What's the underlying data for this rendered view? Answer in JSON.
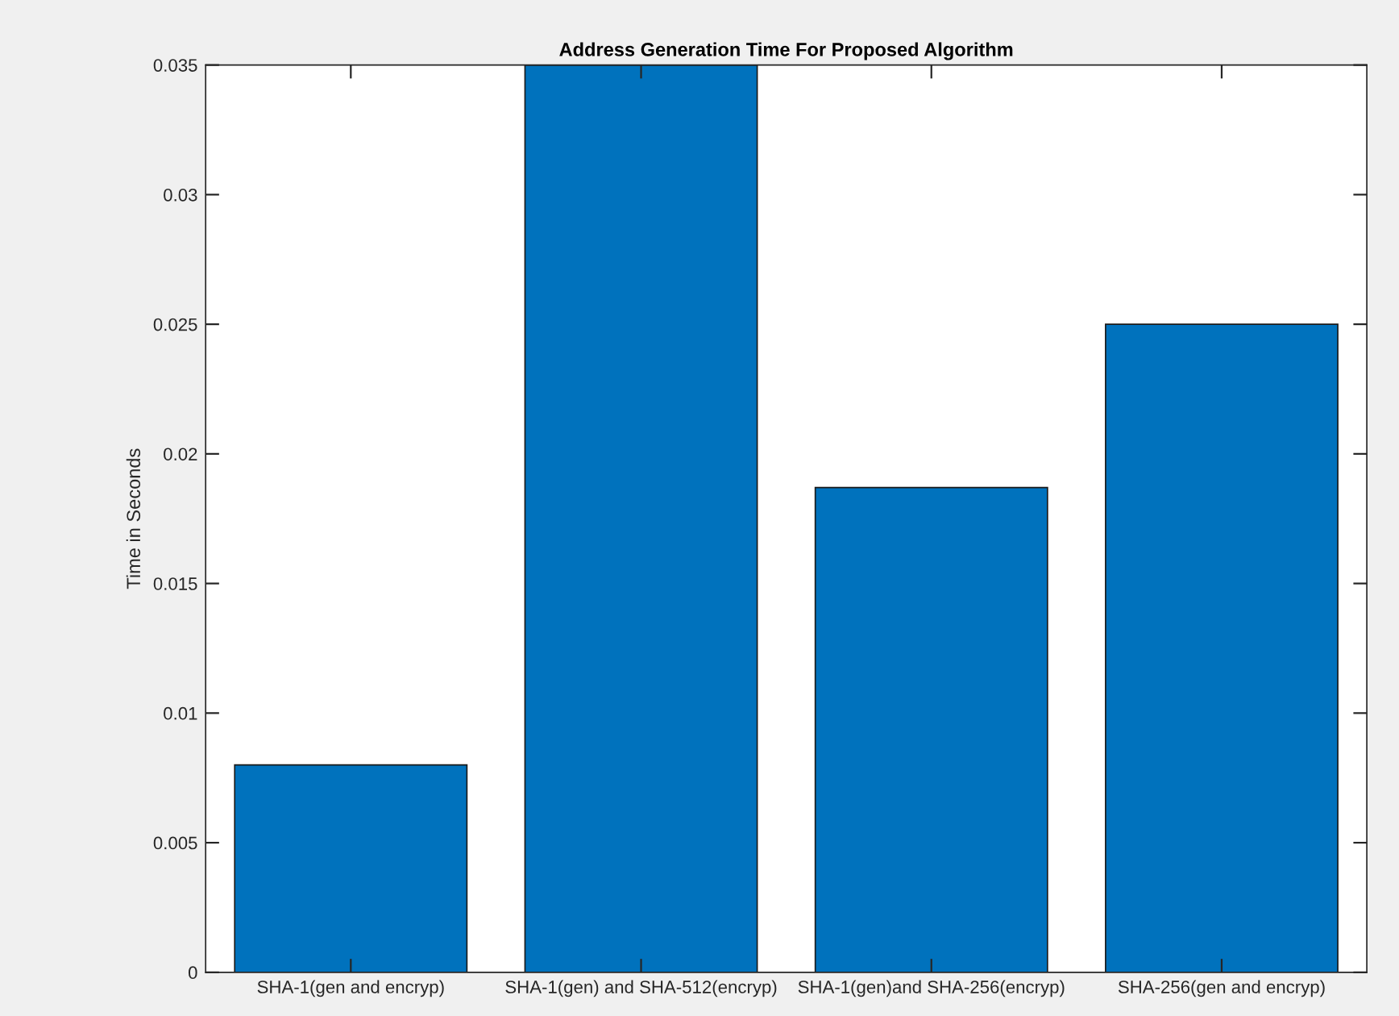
{
  "chart_data": {
    "type": "bar",
    "title": "Address Generation Time For Proposed Algorithm",
    "ylabel": "Time in Seconds",
    "categories": [
      "SHA-1(gen and encryp)",
      "SHA-1(gen) and SHA-512(encryp)",
      "SHA-1(gen)and SHA-256(encryp)",
      "SHA-256(gen and encryp)"
    ],
    "values": [
      0.008,
      0.035,
      0.0187,
      0.025
    ],
    "color": "#0072bd",
    "ylim": [
      0,
      0.035
    ],
    "yticks": [
      {
        "value": 0,
        "label": "0"
      },
      0.005,
      0.01,
      0.015,
      0.02,
      0.025,
      0.03,
      0.035
    ],
    "grid": false
  }
}
